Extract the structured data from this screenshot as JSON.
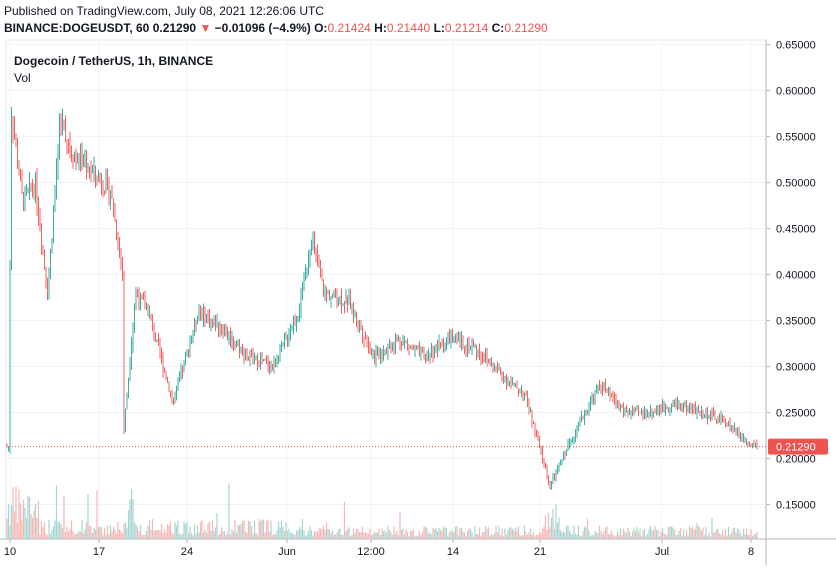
{
  "header": {
    "published": "Published on TradingView.com, July 08, 2021 12:26:06 UTC",
    "symbol_interval": "BINANCE:DOGEUSDT, 60",
    "last": "0.21290",
    "arrow": "▼",
    "change": "−0.01096 (−4.9%)",
    "o_label": "O:",
    "o_value": "0.21424",
    "h_label": "H:",
    "h_value": "0.21440",
    "l_label": "L:",
    "l_value": "0.21214",
    "c_label": "C:",
    "c_value": "0.21290"
  },
  "legend": {
    "title": "Dogecoin / TetherUS, 1h, BINANCE",
    "volume_label": "Vol"
  },
  "chart_data": {
    "type": "candlestick",
    "symbol": "DOGEUSDT",
    "interval": "1h",
    "ylim": [
      0.12,
      0.65
    ],
    "yticks": [
      "0.15000",
      "0.20000",
      "0.25000",
      "0.30000",
      "0.35000",
      "0.40000",
      "0.45000",
      "0.50000",
      "0.55000",
      "0.60000",
      "0.65000"
    ],
    "xticks": [
      "10",
      "17",
      "24",
      "Jun",
      "12:00",
      "14",
      "21",
      "Jul",
      "8"
    ],
    "last_price_label": "0.21290",
    "approx_close_path": [
      {
        "x": "May 10",
        "y": 0.41
      },
      {
        "x": "May 10",
        "y": 0.59
      },
      {
        "x": "May 11",
        "y": 0.48
      },
      {
        "x": "May 12",
        "y": 0.5
      },
      {
        "x": "May 13",
        "y": 0.38
      },
      {
        "x": "May 14",
        "y": 0.57
      },
      {
        "x": "May 15",
        "y": 0.53
      },
      {
        "x": "May 16",
        "y": 0.52
      },
      {
        "x": "May 18",
        "y": 0.49
      },
      {
        "x": "May 19",
        "y": 0.4
      },
      {
        "x": "May 19",
        "y": 0.22
      },
      {
        "x": "May 20",
        "y": 0.38
      },
      {
        "x": "May 21",
        "y": 0.36
      },
      {
        "x": "May 23",
        "y": 0.26
      },
      {
        "x": "May 25",
        "y": 0.36
      },
      {
        "x": "May 27",
        "y": 0.34
      },
      {
        "x": "May 29",
        "y": 0.31
      },
      {
        "x": "May 31",
        "y": 0.3
      },
      {
        "x": "Jun 2",
        "y": 0.36
      },
      {
        "x": "Jun 3",
        "y": 0.44
      },
      {
        "x": "Jun 4",
        "y": 0.38
      },
      {
        "x": "Jun 6",
        "y": 0.37
      },
      {
        "x": "Jun 8",
        "y": 0.31
      },
      {
        "x": "Jun 10",
        "y": 0.33
      },
      {
        "x": "Jun 12",
        "y": 0.31
      },
      {
        "x": "Jun 14",
        "y": 0.33
      },
      {
        "x": "Jun 16",
        "y": 0.32
      },
      {
        "x": "Jun 19",
        "y": 0.28
      },
      {
        "x": "Jun 20",
        "y": 0.27
      },
      {
        "x": "Jun 21",
        "y": 0.22
      },
      {
        "x": "Jun 22",
        "y": 0.17
      },
      {
        "x": "Jun 24",
        "y": 0.23
      },
      {
        "x": "Jun 26",
        "y": 0.28
      },
      {
        "x": "Jun 28",
        "y": 0.25
      },
      {
        "x": "Jun 30",
        "y": 0.25
      },
      {
        "x": "Jul 2",
        "y": 0.26
      },
      {
        "x": "Jul 4",
        "y": 0.25
      },
      {
        "x": "Jul 6",
        "y": 0.24
      },
      {
        "x": "Jul 8",
        "y": 0.2129
      }
    ],
    "grid": true,
    "colors": {
      "up": "#26a69a",
      "down": "#ef5350",
      "price_label_bg": "#ef5350",
      "volume_up": "#a5d6d1",
      "volume_down": "#f7b7b5",
      "grid": "#f0f3fa"
    }
  }
}
